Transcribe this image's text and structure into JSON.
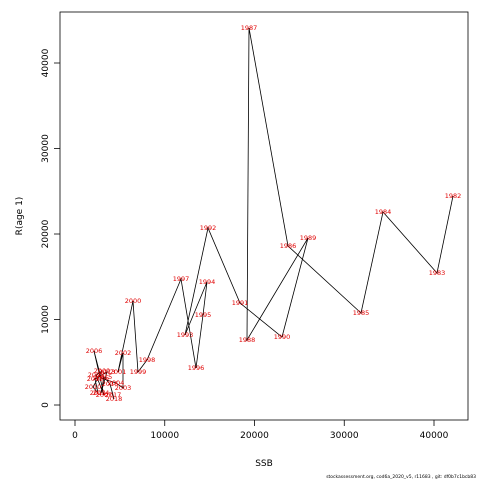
{
  "chart_data": {
    "type": "line",
    "xlabel": "SSB",
    "ylabel": "R(age 1)",
    "footer": "stockassessment.org, cod6a_2020_v5, r11683 , git: df0b7c1bcb83",
    "labels": [
      "1982",
      "1983",
      "1984",
      "1985",
      "1986",
      "1987",
      "1988",
      "1989",
      "1990",
      "1991",
      "1992",
      "1993",
      "1994",
      "1995",
      "1996",
      "1997",
      "1998",
      "1999",
      "2000",
      "2001",
      "2002",
      "2003",
      "2004",
      "2005",
      "2006",
      "2007",
      "2008",
      "2009",
      "2010",
      "2011",
      "2012",
      "2013",
      "2014",
      "2015",
      "2016",
      "2017",
      "2018"
    ],
    "x": [
      42117,
      40334,
      34318,
      31866,
      23733,
      19387,
      19164,
      25961,
      23064,
      18384,
      14819,
      12256,
      14708,
      14262,
      13482,
      11811,
      8022,
      7019,
      6462,
      4791,
      5348,
      5348,
      4568,
      2897,
      2117,
      3231,
      2340,
      3008,
      2006,
      2563,
      2228,
      3565,
      2897,
      3231,
      3900,
      4234,
      4345
    ],
    "values": [
      24444,
      15439,
      22573,
      10760,
      18596,
      44094,
      7602,
      19532,
      7953,
      11930,
      20702,
      8187,
      14386,
      10526,
      4327,
      14737,
      5263,
      3860,
      12164,
      3860,
      6082,
      1988,
      2573,
      3158,
      6316,
      1170,
      3509,
      3977,
      2105,
      1404,
      3041,
      3860,
      1404,
      3275,
      2456,
      1170,
      702
    ],
    "line_color": "#000000",
    "label_color": "#e00000",
    "xlim": [
      -1671,
      43788
    ],
    "ylim": [
      -1754,
      45965
    ],
    "xticks": [
      0,
      10000,
      20000,
      30000,
      40000
    ],
    "yticks": [
      0,
      10000,
      20000,
      30000,
      40000
    ]
  }
}
